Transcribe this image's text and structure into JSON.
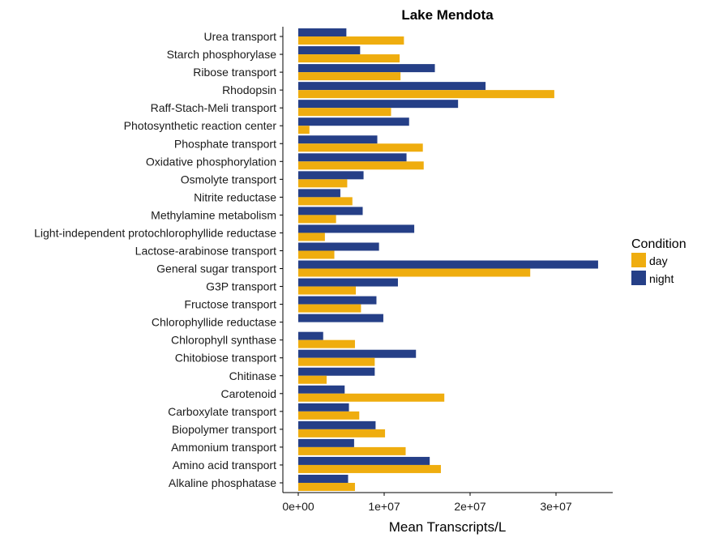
{
  "chart_data": {
    "type": "bar",
    "orientation": "horizontal",
    "title": "Lake Mendota",
    "xlabel": "Mean Transcripts/L",
    "ylabel": "",
    "xlim": [
      0,
      36000000
    ],
    "xticks": [
      {
        "value": 0,
        "label": "0e+00"
      },
      {
        "value": 10000000,
        "label": "1e+07"
      },
      {
        "value": 20000000,
        "label": "2e+07"
      },
      {
        "value": 30000000,
        "label": "3e+07"
      }
    ],
    "grid": false,
    "legend": {
      "title": "Condition",
      "position": "right"
    },
    "categories": [
      "Urea transport",
      "Starch phosphorylase",
      "Ribose transport",
      "Rhodopsin",
      "Raff-Stach-Meli transport",
      "Photosynthetic reaction center",
      "Phosphate transport",
      "Oxidative phosphorylation",
      "Osmolyte transport",
      "Nitrite reductase",
      "Methylamine metabolism",
      "Light-independent protochlorophyllide reductase",
      "Lactose-arabinose transport",
      "General sugar transport",
      "G3P transport",
      "Fructose transport",
      "Chlorophyllide reductase",
      "Chlorophyll synthase",
      "Chitobiose transport",
      "Chitinase",
      "Carotenoid",
      "Carboxylate transport",
      "Biopolymer transport",
      "Ammonium transport",
      "Amino acid transport",
      "Alkaline phosphatase"
    ],
    "series": [
      {
        "name": "day",
        "color": "#EFAD0F",
        "values": [
          12300000,
          11800000,
          11900000,
          29800000,
          10800000,
          1300000,
          14500000,
          14600000,
          5700000,
          6300000,
          4400000,
          3100000,
          4200000,
          27000000,
          6700000,
          7300000,
          0,
          6600000,
          8900000,
          3300000,
          17000000,
          7100000,
          10100000,
          12500000,
          16600000,
          6600000
        ]
      },
      {
        "name": "night",
        "color": "#253F87",
        "values": [
          5600000,
          7200000,
          15900000,
          21800000,
          18600000,
          12900000,
          9200000,
          12600000,
          7600000,
          4900000,
          7500000,
          13500000,
          9400000,
          34900000,
          11600000,
          9100000,
          9900000,
          2900000,
          13700000,
          8900000,
          5400000,
          5900000,
          9000000,
          6500000,
          15300000,
          5800000
        ]
      }
    ]
  }
}
